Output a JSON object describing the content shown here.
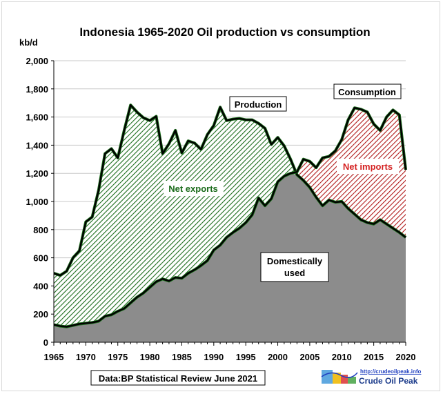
{
  "chart_data": {
    "type": "area",
    "title": "Indonesia 1965-2020 Oil production vs consumption",
    "ylabel": "kb/d",
    "ylim": [
      0,
      2000
    ],
    "xlim": [
      1965,
      2020
    ],
    "yticks": [
      0,
      200,
      400,
      600,
      800,
      1000,
      1200,
      1400,
      1600,
      1800,
      2000
    ],
    "ytick_labels": [
      "0",
      "200",
      "400",
      "600",
      "800",
      "1,000",
      "1,200",
      "1,400",
      "1,600",
      "1,800",
      "2,000"
    ],
    "xticks": [
      1965,
      1970,
      1975,
      1980,
      1985,
      1990,
      1995,
      2000,
      2005,
      2010,
      2015,
      2020
    ],
    "grid": "horizontal",
    "x": [
      1965,
      1966,
      1967,
      1968,
      1969,
      1970,
      1971,
      1972,
      1973,
      1974,
      1975,
      1976,
      1977,
      1978,
      1979,
      1980,
      1981,
      1982,
      1983,
      1984,
      1985,
      1986,
      1987,
      1988,
      1989,
      1990,
      1991,
      1992,
      1993,
      1994,
      1995,
      1996,
      1997,
      1998,
      1999,
      2000,
      2001,
      2002,
      2003,
      2004,
      2005,
      2006,
      2007,
      2008,
      2009,
      2010,
      2011,
      2012,
      2013,
      2014,
      2015,
      2016,
      2017,
      2018,
      2019,
      2020
    ],
    "series": [
      {
        "name": "Production",
        "color": "#000000",
        "values": [
          490,
          475,
          505,
          600,
          650,
          855,
          890,
          1080,
          1340,
          1375,
          1310,
          1505,
          1685,
          1635,
          1595,
          1575,
          1605,
          1340,
          1410,
          1505,
          1345,
          1430,
          1415,
          1370,
          1475,
          1540,
          1670,
          1575,
          1585,
          1590,
          1580,
          1580,
          1555,
          1520,
          1405,
          1455,
          1395,
          1300,
          1190,
          1150,
          1100,
          1030,
          970,
          1010,
          995,
          1000,
          950,
          910,
          870,
          850,
          840,
          870,
          840,
          810,
          780,
          745
        ]
      },
      {
        "name": "Consumption",
        "color": "#000000",
        "values": [
          125,
          115,
          110,
          120,
          130,
          135,
          140,
          150,
          185,
          195,
          220,
          240,
          280,
          320,
          350,
          390,
          430,
          450,
          435,
          460,
          455,
          490,
          515,
          545,
          580,
          655,
          690,
          745,
          780,
          810,
          850,
          905,
          1025,
          970,
          1020,
          1140,
          1180,
          1200,
          1210,
          1300,
          1285,
          1240,
          1310,
          1320,
          1360,
          1440,
          1580,
          1665,
          1655,
          1635,
          1550,
          1505,
          1600,
          1650,
          1615,
          1225
        ]
      }
    ],
    "annotations": [
      {
        "text": "Production"
      },
      {
        "text": "Consumption"
      },
      {
        "text": "Net exports",
        "color": "#1a6b1a"
      },
      {
        "text": "Net imports",
        "color": "#d42020"
      },
      {
        "text": "Domestically used"
      }
    ],
    "source_note": "Data:BP Statistical Review June 2021",
    "colors": {
      "net_exports": "#1a6b1a",
      "net_imports": "#b01818",
      "domestic": "#8c8c8c",
      "line": "#000000"
    }
  },
  "logo": {
    "url": "http://crudeoilpeak.info",
    "name": "Crude Oil Peak"
  }
}
